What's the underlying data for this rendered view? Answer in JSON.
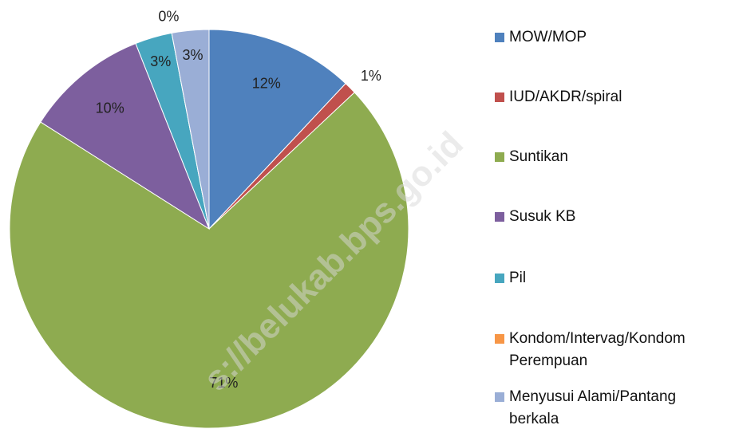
{
  "chart_data": {
    "type": "pie",
    "categories": [
      "MOW/MOP",
      "IUD/AKDR/spiral",
      "Suntikan",
      "Susuk KB",
      "Pil",
      "Kondom/Intervag/Kondom Perempuan",
      "Menyusui Alami/Pantang berkala"
    ],
    "values": [
      12,
      1,
      71,
      10,
      3,
      0,
      3
    ],
    "value_labels": [
      "12%",
      "1%",
      "71%",
      "10%",
      "3%",
      "0%",
      "3%"
    ],
    "colors": [
      "#4f81bd",
      "#c0504d",
      "#8eab50",
      "#7d5f9e",
      "#47a6bf",
      "#f79646",
      "#9aaed6"
    ],
    "watermark": "s://belukab.bps.go.id"
  }
}
